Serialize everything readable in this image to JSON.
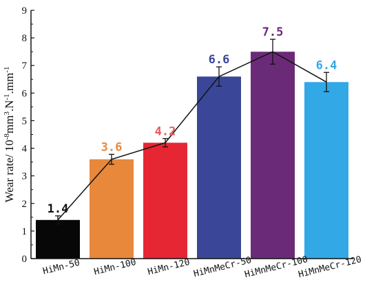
{
  "chart_data": {
    "type": "bar",
    "categories": [
      "HiMn-50",
      "HiMn-100",
      "HiMn-120",
      "HiMnMeCr-50",
      "HiMnMeCr-100",
      "HiMnMeCr-120"
    ],
    "values": [
      1.4,
      3.6,
      4.2,
      6.6,
      7.5,
      6.4
    ],
    "value_labels": [
      "1.4",
      "3.6",
      "4.2",
      "6.6",
      "7.5",
      "6.4"
    ],
    "errors": [
      0.15,
      0.18,
      0.15,
      0.35,
      0.45,
      0.35
    ],
    "bar_colors": [
      "#070707",
      "#e8883a",
      "#e62633",
      "#3a4798",
      "#6b2a78",
      "#32a8e6"
    ],
    "label_colors": [
      "#111111",
      "#e8883a",
      "#e85b55",
      "#3a4798",
      "#6b2a78",
      "#32a8e6"
    ],
    "line_color": "#111111",
    "ylabel_parts": [
      {
        "text": "Wear rate/ 10",
        "sup": false
      },
      {
        "text": "-8",
        "sup": true
      },
      {
        "text": "mm",
        "sup": false
      },
      {
        "text": "3",
        "sup": true
      },
      {
        "text": ".N",
        "sup": false
      },
      {
        "text": "-1",
        "sup": true
      },
      {
        "text": ".mm",
        "sup": false
      },
      {
        "text": "-1",
        "sup": true
      }
    ],
    "ylim": [
      0,
      9
    ],
    "yticks": [
      0,
      1,
      2,
      3,
      4,
      5,
      6,
      7,
      8,
      9
    ],
    "grid": false,
    "title": "",
    "xlabel": ""
  }
}
